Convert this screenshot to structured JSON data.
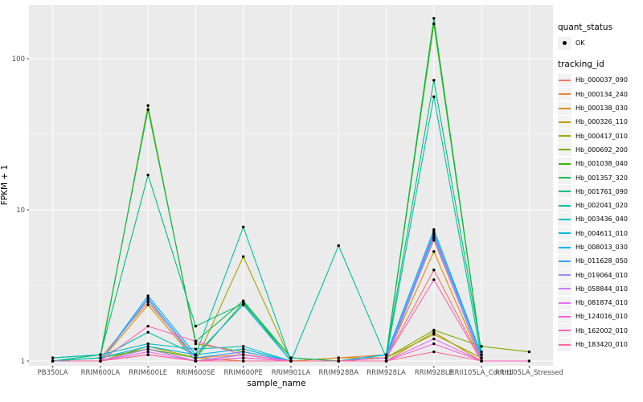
{
  "chart_data": {
    "type": "line",
    "title": "",
    "xlabel": "sample_name",
    "ylabel": "FPKM + 1",
    "y_scale": "log10",
    "y_ticks": [
      1,
      10,
      100
    ],
    "y_minor_ticks": [
      3.162,
      31.62
    ],
    "ylim": [
      0.93,
      230
    ],
    "grid": "on",
    "legend_position": "right",
    "point_marker": "black-dot",
    "categories": [
      "PB350LA",
      "RRIM600LA",
      "RRIM600LE",
      "RRIM600SE",
      "RRIM600PE",
      "RRIM901LA",
      "RRIM928BA",
      "RRIM928LA",
      "RRIM928LE",
      "RRII105LA_Control",
      "RRII105LA_Stressed"
    ],
    "series": [
      {
        "name": "Hb_000037_090",
        "color": "#F8766D",
        "values": [
          1.0,
          1.0,
          1.1,
          1.0,
          1.05,
          1.0,
          1.0,
          1.05,
          4.0,
          1.0,
          null
        ]
      },
      {
        "name": "Hb_000134_240",
        "color": "#EA8331",
        "values": [
          1.0,
          1.05,
          2.45,
          1.05,
          1.1,
          1.0,
          1.05,
          1.1,
          6.3,
          1.05,
          null
        ]
      },
      {
        "name": "Hb_000138_030",
        "color": "#D89000",
        "values": [
          1.0,
          1.0,
          2.35,
          1.0,
          1.1,
          1.0,
          1.05,
          1.05,
          5.3,
          1.0,
          null
        ]
      },
      {
        "name": "Hb_000326_110",
        "color": "#C09B00",
        "values": [
          1.0,
          1.0,
          1.25,
          1.05,
          1.0,
          1.0,
          1.0,
          1.0,
          1.55,
          1.0,
          null
        ]
      },
      {
        "name": "Hb_000417_010",
        "color": "#A3A500",
        "values": [
          1.0,
          1.0,
          1.2,
          1.0,
          4.9,
          1.0,
          1.0,
          1.05,
          1.5,
          1.05,
          null
        ]
      },
      {
        "name": "Hb_000692_200",
        "color": "#7CAE00",
        "values": [
          1.0,
          1.05,
          49,
          1.3,
          1.15,
          1.0,
          1.0,
          1.05,
          1.6,
          1.25,
          1.15
        ]
      },
      {
        "name": "Hb_001038_040",
        "color": "#39B600",
        "values": [
          1.0,
          1.05,
          1.2,
          1.05,
          2.45,
          1.0,
          1.0,
          1.1,
          170,
          1.1,
          null
        ]
      },
      {
        "name": "Hb_001357_320",
        "color": "#00BB4E",
        "values": [
          1.0,
          1.1,
          46,
          1.35,
          2.5,
          1.05,
          1.0,
          1.1,
          185,
          1.1,
          null
        ]
      },
      {
        "name": "Hb_001761_090",
        "color": "#00BF7D",
        "values": [
          1.05,
          1.1,
          17,
          1.7,
          2.4,
          1.05,
          1.0,
          1.1,
          72,
          1.15,
          null
        ]
      },
      {
        "name": "Hb_002041_020",
        "color": "#00C1A3",
        "values": [
          1.0,
          1.05,
          1.55,
          1.1,
          7.7,
          1.0,
          5.8,
          1.05,
          56,
          1.05,
          null
        ]
      },
      {
        "name": "Hb_003436_040",
        "color": "#00BFC4",
        "values": [
          1.05,
          1.1,
          1.3,
          1.2,
          1.25,
          1.0,
          1.0,
          1.1,
          7.4,
          1.1,
          null
        ]
      },
      {
        "name": "Hb_004611_010",
        "color": "#00BAE0",
        "values": [
          1.0,
          1.05,
          1.25,
          1.1,
          1.2,
          1.0,
          1.0,
          1.05,
          6.5,
          1.05,
          null
        ]
      },
      {
        "name": "Hb_008013_030",
        "color": "#00B0F6",
        "values": [
          1.0,
          1.0,
          2.7,
          1.1,
          2.35,
          1.0,
          1.0,
          1.1,
          7.0,
          1.1,
          null
        ]
      },
      {
        "name": "Hb_011628_050",
        "color": "#35A2FF",
        "values": [
          1.0,
          1.0,
          2.6,
          1.05,
          1.15,
          1.0,
          1.0,
          1.05,
          6.8,
          1.05,
          null
        ]
      },
      {
        "name": "Hb_019064_010",
        "color": "#9590FF",
        "values": [
          1.0,
          1.0,
          2.55,
          1.0,
          1.1,
          1.0,
          1.0,
          1.05,
          7.2,
          1.0,
          null
        ]
      },
      {
        "name": "Hb_058844_010",
        "color": "#C77CFF",
        "values": [
          1.0,
          1.0,
          1.2,
          1.0,
          1.1,
          1.0,
          1.0,
          1.0,
          6.6,
          1.0,
          null
        ]
      },
      {
        "name": "Hb_081874_010",
        "color": "#E76BF3",
        "values": [
          1.0,
          1.0,
          1.15,
          1.0,
          1.05,
          1.0,
          1.0,
          1.0,
          1.4,
          1.0,
          null
        ]
      },
      {
        "name": "Hb_124016_010",
        "color": "#FA62DB",
        "values": [
          1.0,
          1.0,
          1.1,
          1.0,
          1.05,
          1.0,
          1.0,
          1.0,
          1.3,
          1.0,
          null
        ]
      },
      {
        "name": "Hb_162002_010",
        "color": "#FF62BC",
        "values": [
          1.0,
          1.0,
          1.7,
          1.35,
          1.1,
          1.0,
          1.0,
          1.05,
          3.45,
          1.0,
          1.0
        ]
      },
      {
        "name": "Hb_183420_010",
        "color": "#FF6A98",
        "values": [
          1.0,
          1.0,
          1.1,
          1.0,
          1.0,
          1.0,
          1.0,
          1.0,
          1.15,
          1.0,
          null
        ]
      }
    ],
    "legend": {
      "quant_status_title": "quant_status",
      "quant_status_items": [
        {
          "label": "OK",
          "marker": "point"
        }
      ],
      "tracking_title": "tracking_id"
    }
  },
  "colors": {
    "panel_bg": "#EBEBEB",
    "gridline": "#FFFFFF",
    "tick_mark": "#333333",
    "tick_label": "#4D4D4D",
    "point": "#000000",
    "legend_key_bg": "#F2F2F2",
    "page_bg": "#FFFFFF"
  }
}
